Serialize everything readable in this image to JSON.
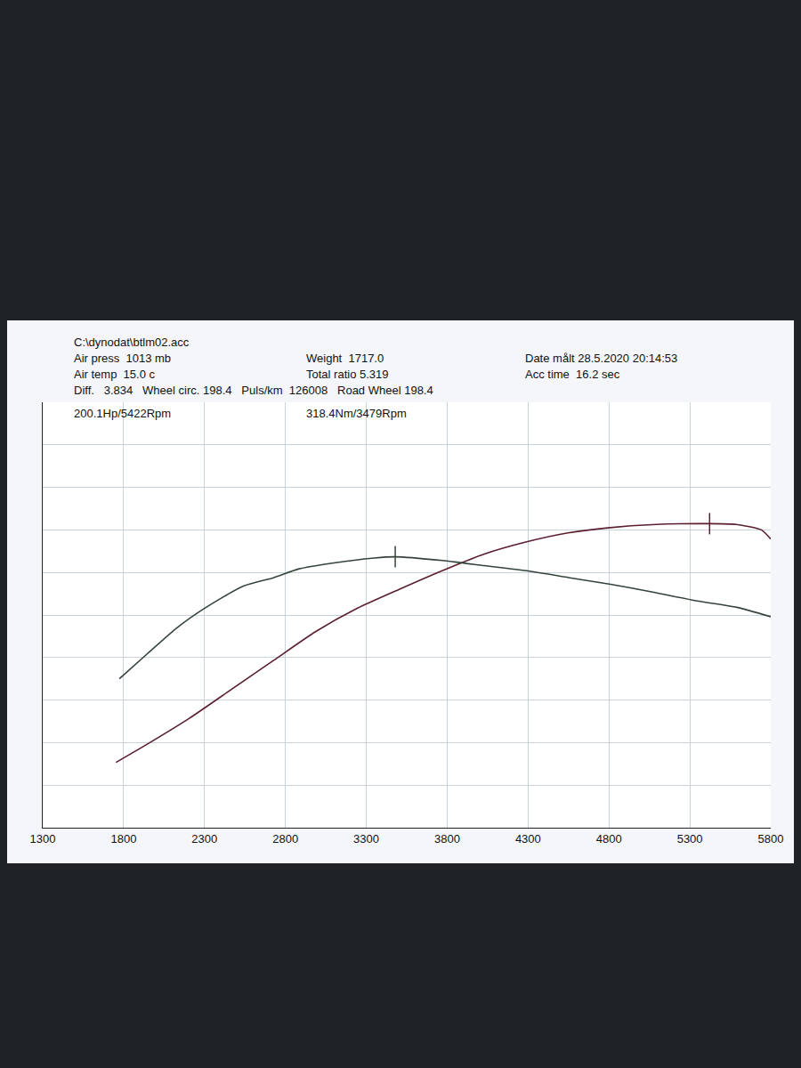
{
  "chart_data": {
    "type": "line",
    "annotations": [
      [
        "C:\\dynodat\\btlm02.acc"
      ],
      [
        "Air press  1013 mb",
        "Weight  1717.0",
        "Date målt 28.5.2020 20:14:53"
      ],
      [
        "Air temp  15.0 c",
        "Total ratio 5.319",
        "Acc time  16.2 sec"
      ],
      [
        "Diff.   3.834   Wheel circ. 198.4   Puls/km  126008   Road Wheel 198.4"
      ],
      [
        "200.1Hp/5422Rpm",
        "318.4Nm/3479Rpm"
      ]
    ],
    "xlim": [
      1300,
      5800
    ],
    "xticks": [
      1300,
      1800,
      2300,
      2800,
      3300,
      3800,
      4300,
      4800,
      5300,
      5800
    ],
    "ylim": [
      0,
      280
    ],
    "yticks": [
      0,
      28,
      56,
      84,
      112,
      140,
      168,
      196,
      224,
      252,
      280
    ],
    "y2lim": [
      0,
      500
    ],
    "y2ticks": [
      0,
      50,
      100,
      150,
      200,
      250,
      300,
      350,
      400,
      450,
      500
    ],
    "grid": true,
    "tick_labels": "x",
    "series": [
      {
        "color": "#5b1f2e",
        "marker": "peak",
        "x": [
          1753,
          1946,
          2206,
          2466,
          2726,
          2986,
          3246,
          3506,
          3766,
          4026,
          4286,
          4546,
          4806,
          5066,
          5422,
          5586,
          5742,
          5800
        ],
        "values": [
          43,
          55,
          72,
          91,
          110,
          129,
          144.5,
          157,
          169,
          180,
          188,
          194,
          197.5,
          199.5,
          200.1,
          199.6,
          196,
          190
        ]
      },
      {
        "color": "#34443a",
        "marker": "peak",
        "axis": "y2",
        "x": [
          1774,
          1950,
          2130,
          2310,
          2540,
          2730,
          2880,
          3090,
          3350,
          3479,
          3770,
          4030,
          4290,
          4550,
          4810,
          5070,
          5330,
          5590,
          5800
        ],
        "values": [
          175,
          205,
          235,
          259,
          284,
          294,
          304,
          311,
          317,
          318.4,
          314,
          308,
          302,
          294,
          286,
          277,
          267,
          259,
          248
        ]
      }
    ]
  }
}
